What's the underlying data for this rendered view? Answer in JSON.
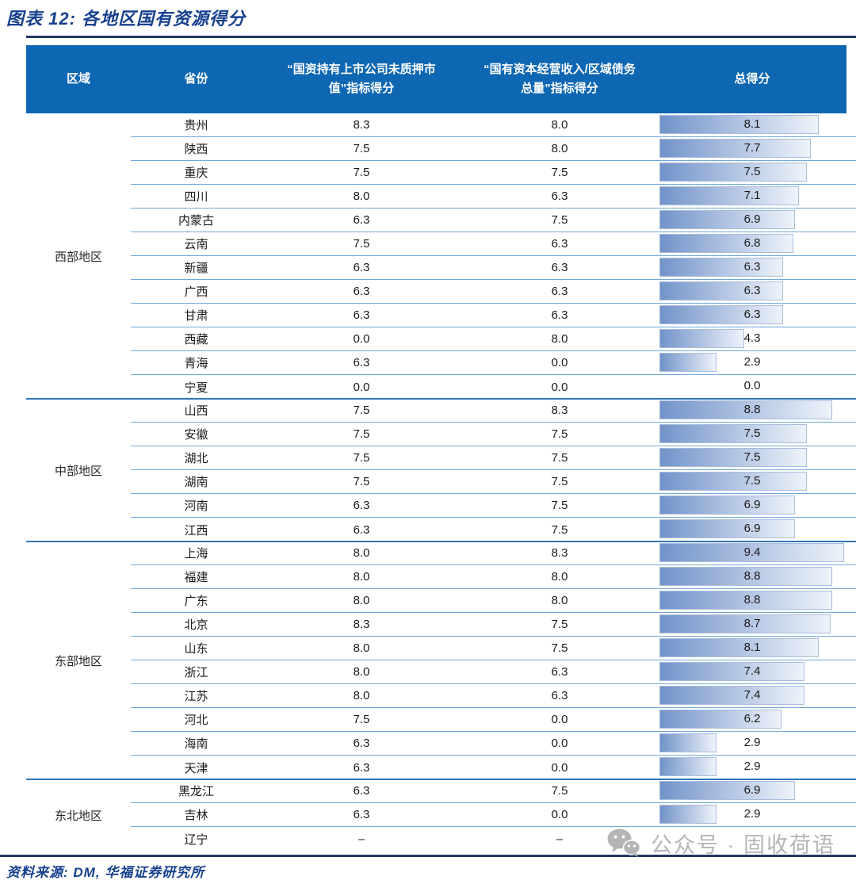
{
  "title": "图表 12: 各地区国有资源得分",
  "source_note": "资料来源: DM, 华福证券研究所",
  "watermark": {
    "text": "公众号 · 固收荷语"
  },
  "colors": {
    "header_bg": "#0e67b2",
    "navy_text": "#17418e",
    "navy_rule": "#1f3864",
    "row_line": "#6fa8dc",
    "group_line": "#2e75b6",
    "bar_start": "#7293c9",
    "bar_end": "#eef3fa",
    "bar_border": "#a9bddd",
    "watermark_gray": "#b5b5b5"
  },
  "chart_data": {
    "type": "table",
    "title": "各地区国有资源得分",
    "columns": [
      "区域",
      "省份",
      "“国资持有上市公司未质押市\n值”指标得分",
      "“国有资本经营收入/区域债务\n总量”指标得分",
      "总得分"
    ],
    "bar_axis_max": 9.4,
    "groups": [
      {
        "region": "西部地区",
        "rows": [
          {
            "province": "贵州",
            "score1": "8.3",
            "score2": "8.0",
            "total": "8.1",
            "total_value": 8.1
          },
          {
            "province": "陕西",
            "score1": "7.5",
            "score2": "8.0",
            "total": "7.7",
            "total_value": 7.7
          },
          {
            "province": "重庆",
            "score1": "7.5",
            "score2": "7.5",
            "total": "7.5",
            "total_value": 7.5
          },
          {
            "province": "四川",
            "score1": "8.0",
            "score2": "6.3",
            "total": "7.1",
            "total_value": 7.1
          },
          {
            "province": "内蒙古",
            "score1": "6.3",
            "score2": "7.5",
            "total": "6.9",
            "total_value": 6.9
          },
          {
            "province": "云南",
            "score1": "7.5",
            "score2": "6.3",
            "total": "6.8",
            "total_value": 6.8
          },
          {
            "province": "新疆",
            "score1": "6.3",
            "score2": "6.3",
            "total": "6.3",
            "total_value": 6.3
          },
          {
            "province": "广西",
            "score1": "6.3",
            "score2": "6.3",
            "total": "6.3",
            "total_value": 6.3
          },
          {
            "province": "甘肃",
            "score1": "6.3",
            "score2": "6.3",
            "total": "6.3",
            "total_value": 6.3
          },
          {
            "province": "西藏",
            "score1": "0.0",
            "score2": "8.0",
            "total": "4.3",
            "total_value": 4.3
          },
          {
            "province": "青海",
            "score1": "6.3",
            "score2": "0.0",
            "total": "2.9",
            "total_value": 2.9
          },
          {
            "province": "宁夏",
            "score1": "0.0",
            "score2": "0.0",
            "total": "0.0",
            "total_value": 0.0
          }
        ]
      },
      {
        "region": "中部地区",
        "rows": [
          {
            "province": "山西",
            "score1": "7.5",
            "score2": "8.3",
            "total": "8.8",
            "total_value": 8.8
          },
          {
            "province": "安徽",
            "score1": "7.5",
            "score2": "7.5",
            "total": "7.5",
            "total_value": 7.5
          },
          {
            "province": "湖北",
            "score1": "7.5",
            "score2": "7.5",
            "total": "7.5",
            "total_value": 7.5
          },
          {
            "province": "湖南",
            "score1": "7.5",
            "score2": "7.5",
            "total": "7.5",
            "total_value": 7.5
          },
          {
            "province": "河南",
            "score1": "6.3",
            "score2": "7.5",
            "total": "6.9",
            "total_value": 6.9
          },
          {
            "province": "江西",
            "score1": "6.3",
            "score2": "7.5",
            "total": "6.9",
            "total_value": 6.9
          }
        ]
      },
      {
        "region": "东部地区",
        "rows": [
          {
            "province": "上海",
            "score1": "8.0",
            "score2": "8.3",
            "total": "9.4",
            "total_value": 9.4
          },
          {
            "province": "福建",
            "score1": "8.0",
            "score2": "8.0",
            "total": "8.8",
            "total_value": 8.8
          },
          {
            "province": "广东",
            "score1": "8.0",
            "score2": "8.0",
            "total": "8.8",
            "total_value": 8.8
          },
          {
            "province": "北京",
            "score1": "8.3",
            "score2": "7.5",
            "total": "8.7",
            "total_value": 8.7
          },
          {
            "province": "山东",
            "score1": "8.0",
            "score2": "7.5",
            "total": "8.1",
            "total_value": 8.1
          },
          {
            "province": "浙江",
            "score1": "8.0",
            "score2": "6.3",
            "total": "7.4",
            "total_value": 7.4
          },
          {
            "province": "江苏",
            "score1": "8.0",
            "score2": "6.3",
            "total": "7.4",
            "total_value": 7.4
          },
          {
            "province": "河北",
            "score1": "7.5",
            "score2": "0.0",
            "total": "6.2",
            "total_value": 6.2
          },
          {
            "province": "海南",
            "score1": "6.3",
            "score2": "0.0",
            "total": "2.9",
            "total_value": 2.9
          },
          {
            "province": "天津",
            "score1": "6.3",
            "score2": "0.0",
            "total": "2.9",
            "total_value": 2.9
          }
        ]
      },
      {
        "region": "东北地区",
        "rows": [
          {
            "province": "黑龙江",
            "score1": "6.3",
            "score2": "7.5",
            "total": "6.9",
            "total_value": 6.9
          },
          {
            "province": "吉林",
            "score1": "6.3",
            "score2": "0.0",
            "total": "2.9",
            "total_value": 2.9
          },
          {
            "province": "辽宁",
            "score1": "–",
            "score2": "–",
            "total": "",
            "total_value": null
          }
        ]
      }
    ]
  }
}
